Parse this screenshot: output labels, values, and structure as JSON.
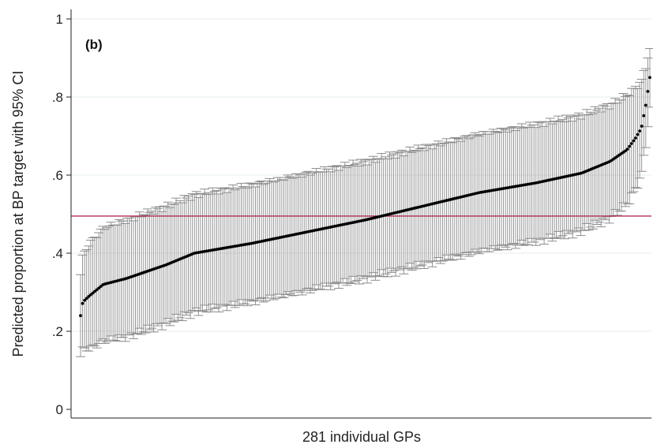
{
  "chart_data": {
    "type": "scatter",
    "panel_label": "(b)",
    "xlabel": "281 individual GPs",
    "ylabel": "Predicted proportion at BP target with 95% CI",
    "ylim": [
      0,
      1
    ],
    "yticks": [
      {
        "value": 0,
        "label": "0"
      },
      {
        "value": 0.2,
        "label": ".2"
      },
      {
        "value": 0.4,
        "label": ".4"
      },
      {
        "value": 0.6,
        "label": ".6"
      },
      {
        "value": 0.8,
        "label": ".8"
      },
      {
        "value": 1,
        "label": "1"
      }
    ],
    "grid": true,
    "n_gps": 281,
    "reference_line": {
      "value": 0.495,
      "color": "#b03050"
    },
    "point_color": "#000000",
    "ci_color": "#8c8c8c",
    "anchors": {
      "rank_fraction": [
        0,
        0.004,
        0.015,
        0.04,
        0.08,
        0.15,
        0.2,
        0.3,
        0.4,
        0.5,
        0.6,
        0.7,
        0.8,
        0.88,
        0.93,
        0.96,
        0.975,
        0.985,
        0.993,
        1
      ],
      "estimate": [
        0.24,
        0.275,
        0.29,
        0.32,
        0.335,
        0.37,
        0.4,
        0.425,
        0.455,
        0.485,
        0.52,
        0.555,
        0.58,
        0.605,
        0.635,
        0.665,
        0.695,
        0.72,
        0.78,
        0.85
      ],
      "ci_halfwidth": [
        0.105,
        0.12,
        0.135,
        0.145,
        0.15,
        0.15,
        0.15,
        0.15,
        0.15,
        0.15,
        0.15,
        0.15,
        0.15,
        0.148,
        0.145,
        0.14,
        0.13,
        0.12,
        0.1,
        0.075
      ]
    }
  }
}
